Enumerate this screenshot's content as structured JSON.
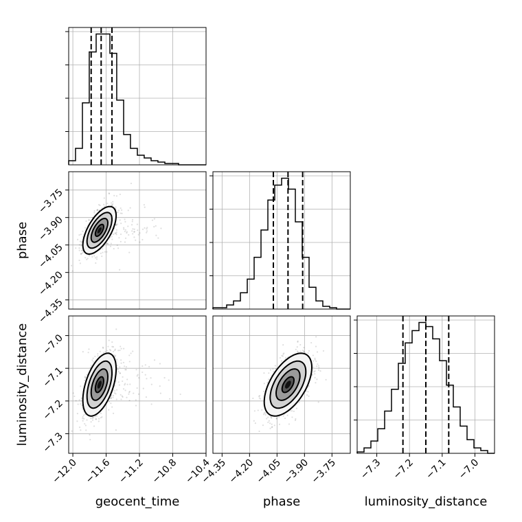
{
  "chart_data": {
    "type": "corner",
    "parameters": [
      "geocent_time",
      "phase",
      "luminosity_distance"
    ],
    "axis_labels": {
      "geocent_time": "geocent_time",
      "phase": "phase",
      "luminosity_distance": "luminosity_distance"
    },
    "ranges": {
      "geocent_time": [
        -12.05,
        -10.4
      ],
      "phase": [
        -4.4,
        -3.65
      ],
      "luminosity_distance": [
        -7.36,
        -6.94
      ]
    },
    "ticks": {
      "geocent_time": [
        -12.0,
        -11.6,
        -11.2,
        -10.8,
        -10.4
      ],
      "phase": [
        -4.35,
        -4.2,
        -4.05,
        -3.9,
        -3.75
      ],
      "luminosity_distance": [
        -7.3,
        -7.2,
        -7.1,
        -7.0
      ]
    },
    "tick_labels": {
      "geocent_time": [
        "−12.0",
        "−11.6",
        "−11.2",
        "−10.8",
        "−10.4"
      ],
      "phase": [
        "−4.35",
        "−4.20",
        "−4.05",
        "−3.90",
        "−3.75"
      ],
      "luminosity_distance": [
        "−7.3",
        "−7.2",
        "−7.1",
        "−7.0"
      ]
    },
    "histograms": {
      "geocent_time": {
        "bin_edges": [
          -12.05,
          -11.968,
          -11.885,
          -11.803,
          -11.72,
          -11.638,
          -11.555,
          -11.473,
          -11.39,
          -11.308,
          -11.225,
          -11.143,
          -11.06,
          -10.978,
          -10.895,
          -10.813,
          -10.73,
          -10.648,
          -10.565,
          -10.483,
          -10.4
        ],
        "counts": [
          3,
          12,
          45,
          82,
          95,
          95,
          81,
          47,
          22,
          12,
          7,
          5,
          3,
          2,
          1,
          1,
          0,
          0,
          0,
          0
        ],
        "quantiles": [
          -11.78,
          -11.66,
          -11.53
        ]
      },
      "phase": {
        "bin_edges": [
          -4.4,
          -4.3625,
          -4.325,
          -4.2875,
          -4.25,
          -4.2125,
          -4.175,
          -4.1375,
          -4.1,
          -4.0625,
          -4.025,
          -3.9875,
          -3.95,
          -3.9125,
          -3.875,
          -3.8375,
          -3.8,
          -3.7625,
          -3.725,
          -3.6875,
          -3.65
        ],
        "counts": [
          1,
          1,
          3,
          6,
          12,
          22,
          38,
          58,
          80,
          91,
          96,
          88,
          64,
          38,
          16,
          6,
          2,
          1,
          0,
          0
        ],
        "quantiles": [
          -4.07,
          -3.99,
          -3.91
        ]
      },
      "luminosity_distance": {
        "bin_edges": [
          -7.36,
          -7.339,
          -7.318,
          -7.297,
          -7.276,
          -7.255,
          -7.234,
          -7.213,
          -7.192,
          -7.171,
          -7.15,
          -7.129,
          -7.108,
          -7.087,
          -7.066,
          -7.045,
          -7.024,
          -7.003,
          -6.982,
          -6.961,
          -6.94
        ],
        "counts": [
          1,
          4,
          9,
          18,
          31,
          47,
          66,
          81,
          90,
          96,
          93,
          84,
          68,
          50,
          34,
          20,
          10,
          4,
          2,
          0
        ],
        "quantiles": [
          -7.22,
          -7.15,
          -7.08
        ]
      }
    },
    "joint": [
      {
        "x": "geocent_time",
        "y": "phase",
        "mean": [
          -11.68,
          -3.97
        ],
        "sigma": [
          0.1,
          0.065
        ],
        "rho": 0.62
      },
      {
        "x": "geocent_time",
        "y": "luminosity_distance",
        "mean": [
          -11.68,
          -7.15
        ],
        "sigma": [
          0.1,
          0.048
        ],
        "rho": 0.5
      },
      {
        "x": "phase",
        "y": "luminosity_distance",
        "mean": [
          -3.99,
          -7.15
        ],
        "sigma": [
          0.065,
          0.048
        ],
        "rho": 0.55
      }
    ],
    "contour_levels_sigma": [
      0.5,
      1.0,
      1.5,
      2.0
    ],
    "grid": true
  }
}
